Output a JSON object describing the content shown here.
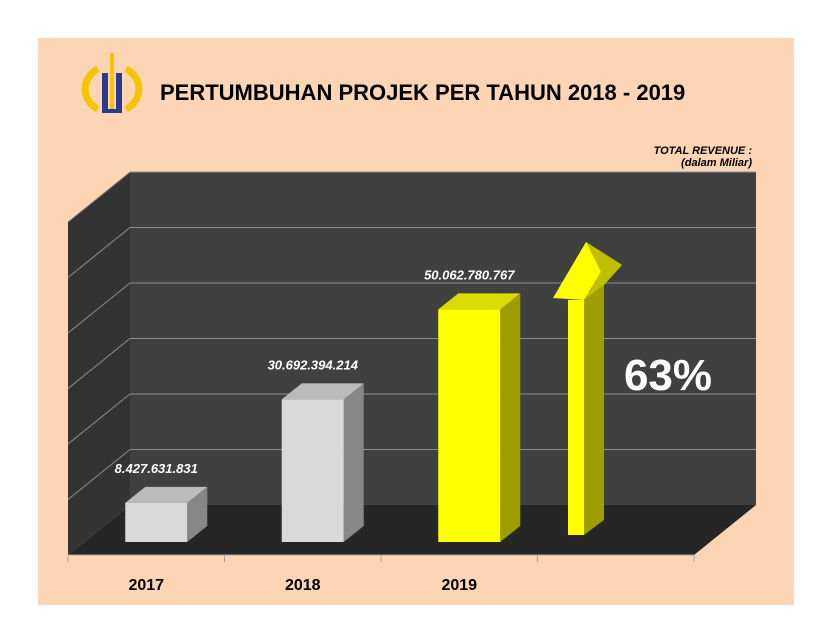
{
  "chart_data": {
    "type": "bar",
    "title": "PERTUMBUHAN PROJEK PER TAHUN 2018 - 2019",
    "ylabel_line1": "TOTAL REVENUE :",
    "ylabel_line2": "(dalam Miliar)",
    "categories": [
      "2017",
      "2018",
      "2019"
    ],
    "values": [
      8427631831,
      30692394214,
      50062780767
    ],
    "value_labels": [
      "8.427.631.831",
      "30.692.394.214",
      "50.062.780.767"
    ],
    "bar_colors": [
      "#d9d9d9",
      "#d9d9d9",
      "#ffff00"
    ],
    "ylim": [
      0,
      60000000000
    ],
    "grid": true,
    "growth_label": "63%",
    "growth_arrow_color": "#ffff00",
    "wall_color": "#404040"
  }
}
